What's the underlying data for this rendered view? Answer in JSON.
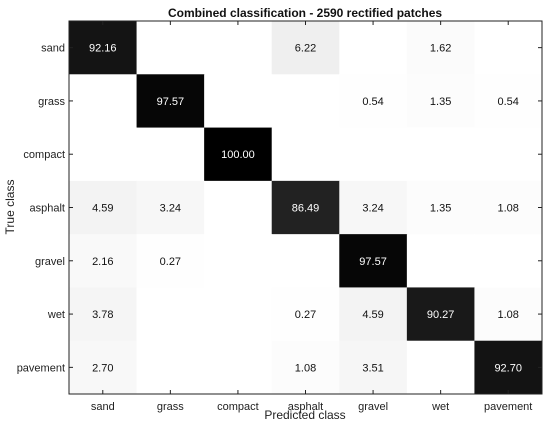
{
  "chart_data": {
    "type": "heatmap",
    "title": "Combined classification - 2590 rectified patches",
    "xlabel": "Predicted class",
    "ylabel": "True class",
    "x_categories": [
      "sand",
      "grass",
      "compact",
      "asphalt",
      "gravel",
      "wet",
      "pavement"
    ],
    "y_categories": [
      "sand",
      "grass",
      "compact",
      "asphalt",
      "gravel",
      "wet",
      "pavement"
    ],
    "value_range": [
      0,
      100
    ],
    "colormap": "white-to-black",
    "cells": [
      [
        "92.16",
        "",
        "",
        "6.22",
        "",
        "1.62",
        ""
      ],
      [
        "",
        "97.57",
        "",
        "",
        "0.54",
        "1.35",
        "0.54"
      ],
      [
        "",
        "",
        "100.00",
        "",
        "",
        "",
        ""
      ],
      [
        "4.59",
        "3.24",
        "",
        "86.49",
        "3.24",
        "1.35",
        "1.08"
      ],
      [
        "2.16",
        "0.27",
        "",
        "",
        "97.57",
        "",
        ""
      ],
      [
        "3.78",
        "",
        "",
        "0.27",
        "4.59",
        "90.27",
        "1.08"
      ],
      [
        "2.70",
        "",
        "",
        "1.08",
        "3.51",
        "",
        "92.70"
      ]
    ]
  }
}
